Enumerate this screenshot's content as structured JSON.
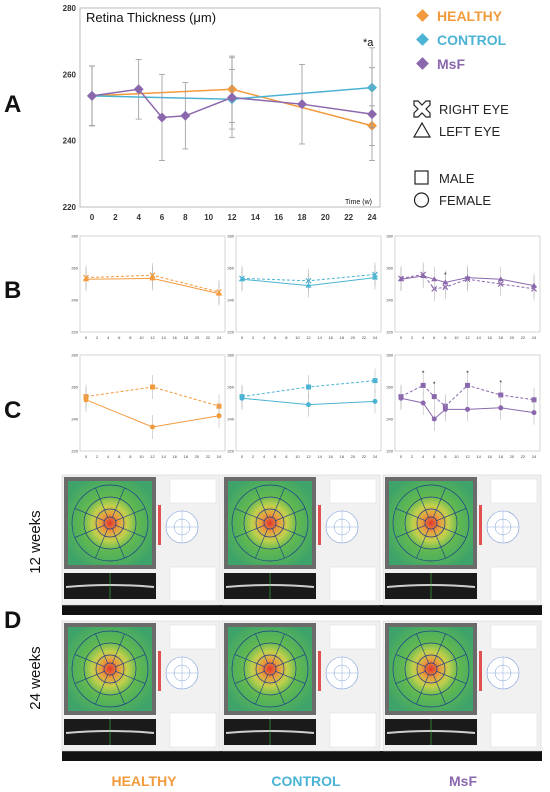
{
  "colors": {
    "healthy": "#f39a3d",
    "control": "#4bb3d3",
    "msf": "#8b68ad"
  },
  "panels": {
    "a": "A",
    "b": "B",
    "c": "C",
    "d": "D"
  },
  "legend": {
    "groups": [
      {
        "label": "HEALTHY",
        "color": "#f39a3d"
      },
      {
        "label": "CONTROL",
        "color": "#4bb3d3"
      },
      {
        "label": "MsF",
        "color": "#8b68ad"
      }
    ],
    "eyes": [
      {
        "label": "RIGHT EYE",
        "icon": "x-square-icon"
      },
      {
        "label": "LEFT EYE",
        "icon": "triangle-icon"
      }
    ],
    "sexes": [
      {
        "label": "MALE",
        "icon": "square-icon"
      },
      {
        "label": "FEMALE",
        "icon": "circle-icon"
      }
    ]
  },
  "chart_data": [
    {
      "type": "line",
      "title": "Retina Thickness (μm)",
      "xlabel": "Time (w)",
      "x_ticks": [
        0,
        2,
        4,
        6,
        8,
        10,
        12,
        14,
        16,
        18,
        20,
        22,
        24
      ],
      "y_ticks": [
        220,
        240,
        260,
        280
      ],
      "ylim": [
        220,
        280
      ],
      "xlim": [
        0,
        24
      ],
      "annotation": "*a",
      "series": [
        {
          "name": "HEALTHY",
          "color": "#f39a3d",
          "x": [
            0,
            12,
            24
          ],
          "y": [
            253.5,
            255.5,
            244.5
          ],
          "err": [
            9,
            10,
            6
          ]
        },
        {
          "name": "CONTROL",
          "color": "#4bb3d3",
          "x": [
            0,
            12,
            24
          ],
          "y": [
            253.5,
            252.5,
            256
          ],
          "err": [
            9,
            9,
            12
          ]
        },
        {
          "name": "MsF",
          "color": "#8b68ad",
          "x": [
            0,
            4,
            6,
            8,
            12,
            18,
            24
          ],
          "y": [
            253.5,
            255.5,
            247,
            247.5,
            253,
            251,
            248
          ],
          "err": [
            9,
            9,
            13,
            10,
            12,
            12,
            14
          ]
        }
      ]
    },
    {
      "type": "line",
      "panel": "B",
      "group": "HEALTHY",
      "color": "#f39a3d",
      "x_ticks": [
        0,
        2,
        4,
        6,
        8,
        10,
        12,
        14,
        16,
        18,
        20,
        22,
        24
      ],
      "y_ticks": [
        220,
        240,
        260,
        280
      ],
      "series": [
        {
          "x": [
            0,
            12,
            24
          ],
          "y": [
            254,
            255.5,
            245
          ]
        },
        {
          "x": [
            0,
            12,
            24
          ],
          "y": [
            253,
            253.5,
            244
          ]
        }
      ]
    },
    {
      "type": "line",
      "panel": "B",
      "group": "CONTROL",
      "color": "#4bb3d3",
      "x_ticks": [
        0,
        2,
        4,
        6,
        8,
        10,
        12,
        14,
        16,
        18,
        20,
        22,
        24
      ],
      "y_ticks": [
        220,
        240,
        260,
        280
      ],
      "series": [
        {
          "x": [
            0,
            12,
            24
          ],
          "y": [
            253.5,
            252,
            256
          ]
        },
        {
          "x": [
            0,
            12,
            24
          ],
          "y": [
            253,
            249,
            254
          ]
        }
      ]
    },
    {
      "type": "line",
      "panel": "B",
      "group": "MsF",
      "color": "#8b68ad",
      "x_ticks": [
        0,
        2,
        4,
        6,
        8,
        10,
        12,
        14,
        16,
        18,
        20,
        22,
        24
      ],
      "y_ticks": [
        220,
        240,
        260,
        280
      ],
      "annotations": [
        "*",
        "*"
      ],
      "series": [
        {
          "x": [
            0,
            4,
            6,
            8,
            12,
            18,
            24
          ],
          "y": [
            253.5,
            256,
            247,
            248,
            253,
            250,
            247
          ]
        },
        {
          "x": [
            0,
            4,
            6,
            8,
            12,
            18,
            24
          ],
          "y": [
            253,
            255,
            253,
            251,
            254,
            253,
            249
          ]
        }
      ]
    },
    {
      "type": "line",
      "panel": "C",
      "group": "HEALTHY",
      "color": "#f39a3d",
      "x_ticks": [
        0,
        2,
        4,
        6,
        8,
        10,
        12,
        14,
        16,
        18,
        20,
        22,
        24
      ],
      "y_ticks": [
        220,
        240,
        260,
        280
      ],
      "series": [
        {
          "x": [
            0,
            12,
            24
          ],
          "y": [
            254,
            260,
            248
          ]
        },
        {
          "x": [
            0,
            12,
            24
          ],
          "y": [
            252,
            235,
            242
          ]
        }
      ]
    },
    {
      "type": "line",
      "panel": "C",
      "group": "CONTROL",
      "color": "#4bb3d3",
      "x_ticks": [
        0,
        2,
        4,
        6,
        8,
        10,
        12,
        14,
        16,
        18,
        20,
        22,
        24
      ],
      "y_ticks": [
        220,
        240,
        260,
        280
      ],
      "series": [
        {
          "x": [
            0,
            12,
            24
          ],
          "y": [
            254,
            260,
            264
          ]
        },
        {
          "x": [
            0,
            12,
            24
          ],
          "y": [
            253,
            249,
            251
          ]
        }
      ]
    },
    {
      "type": "line",
      "panel": "C",
      "group": "MsF",
      "color": "#8b68ad",
      "x_ticks": [
        0,
        2,
        4,
        6,
        8,
        10,
        12,
        14,
        16,
        18,
        20,
        22,
        24
      ],
      "y_ticks": [
        220,
        240,
        260,
        280
      ],
      "annotations": [
        "*",
        "*",
        "*",
        "*"
      ],
      "series": [
        {
          "x": [
            0,
            4,
            6,
            8,
            12,
            18,
            24
          ],
          "y": [
            254,
            261,
            254,
            248,
            261,
            255,
            252
          ]
        },
        {
          "x": [
            0,
            4,
            6,
            8,
            12,
            18,
            24
          ],
          "y": [
            253,
            250,
            240,
            246,
            246,
            247,
            244
          ]
        }
      ]
    }
  ],
  "panel_d": {
    "rows": [
      "12 weeks",
      "24 weeks"
    ],
    "columns": [
      "HEALTHY",
      "CONTROL",
      "MsF"
    ]
  }
}
